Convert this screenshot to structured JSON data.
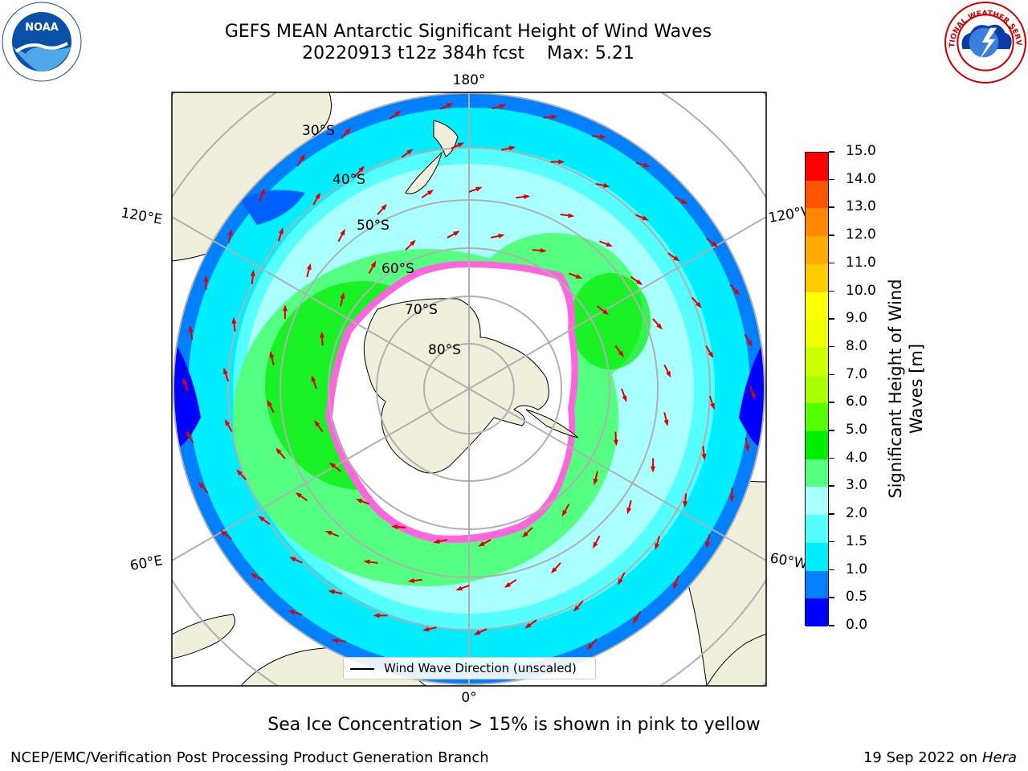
{
  "title": {
    "line1": "GEFS MEAN Antarctic Significant Height of Wind Waves",
    "line2": "20220913 t12z 384h fcst    Max: 5.21"
  },
  "map": {
    "projection": "south-polar-stereographic",
    "longitude_labels": [
      "180°",
      "120°E",
      "120°W",
      "60°E",
      "60°W",
      "0°"
    ],
    "latitude_labels": [
      "30°S",
      "40°S",
      "50°S",
      "60°S",
      "70°S",
      "80°S"
    ],
    "legend_label": "Wind Wave Direction (unscaled)"
  },
  "colorbar": {
    "label": "Significant Height of Wind Waves [m]",
    "ticks": [
      "0.0",
      "0.5",
      "1.0",
      "1.5",
      "2.0",
      "3.0",
      "4.0",
      "5.0",
      "6.0",
      "7.0",
      "8.0",
      "9.0",
      "10.0",
      "11.0",
      "12.0",
      "13.0",
      "14.0",
      "15.0"
    ],
    "colors": [
      "#0000ff",
      "#0080ff",
      "#00eeff",
      "#55ffff",
      "#aaffff",
      "#55ff7f",
      "#00ee00",
      "#55ff00",
      "#aaff00",
      "#ccff00",
      "#eeff00",
      "#ffff00",
      "#ffcc00",
      "#ffaa00",
      "#ff8800",
      "#ff5500",
      "#ff0000"
    ]
  },
  "footnote": "Sea Ice Concentration > 15% is shown in pink to yellow",
  "footer": {
    "left": "NCEP/EMC/Verification Post Processing Product Generation Branch",
    "right_date": "19 Sep 2022 on",
    "right_host": "Hera"
  },
  "logos": {
    "noaa": "noaa-logo",
    "nws": "nws-logo",
    "noaa_text": "NOAA",
    "nws_text": "NATIONAL WEATHER SERVICE"
  }
}
